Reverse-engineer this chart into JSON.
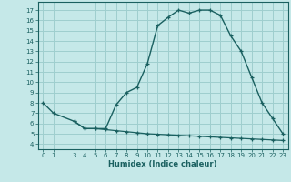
{
  "xlabel": "Humidex (Indice chaleur)",
  "bg_color": "#c5e8e8",
  "grid_color": "#9ecece",
  "line_color": "#1a6060",
  "upper_x": [
    0,
    1,
    3,
    4,
    5,
    6,
    7,
    8,
    9,
    10,
    11,
    12,
    13,
    14,
    15,
    16,
    17,
    18,
    19,
    20,
    21,
    22,
    23
  ],
  "upper_y": [
    8.0,
    7.0,
    6.2,
    5.5,
    5.5,
    5.5,
    7.8,
    9.0,
    9.5,
    11.8,
    15.5,
    16.3,
    17.0,
    16.7,
    17.0,
    17.0,
    16.5,
    14.5,
    13.0,
    10.5,
    8.0,
    6.5,
    5.0
  ],
  "lower_x": [
    3,
    4,
    5,
    6,
    7,
    8,
    9,
    10,
    11,
    12,
    13,
    14,
    15,
    16,
    17,
    18,
    19,
    20,
    21,
    22,
    23
  ],
  "lower_y": [
    6.2,
    5.5,
    5.5,
    5.4,
    5.3,
    5.2,
    5.1,
    5.0,
    4.95,
    4.9,
    4.85,
    4.8,
    4.75,
    4.7,
    4.65,
    4.6,
    4.55,
    4.5,
    4.45,
    4.4,
    4.35
  ],
  "xlim": [
    -0.5,
    23.5
  ],
  "ylim": [
    3.5,
    17.8
  ],
  "yticks": [
    4,
    5,
    6,
    7,
    8,
    9,
    10,
    11,
    12,
    13,
    14,
    15,
    16,
    17
  ],
  "xticks": [
    0,
    1,
    3,
    4,
    5,
    6,
    7,
    8,
    9,
    10,
    11,
    12,
    13,
    14,
    15,
    16,
    17,
    18,
    19,
    20,
    21,
    22,
    23
  ]
}
